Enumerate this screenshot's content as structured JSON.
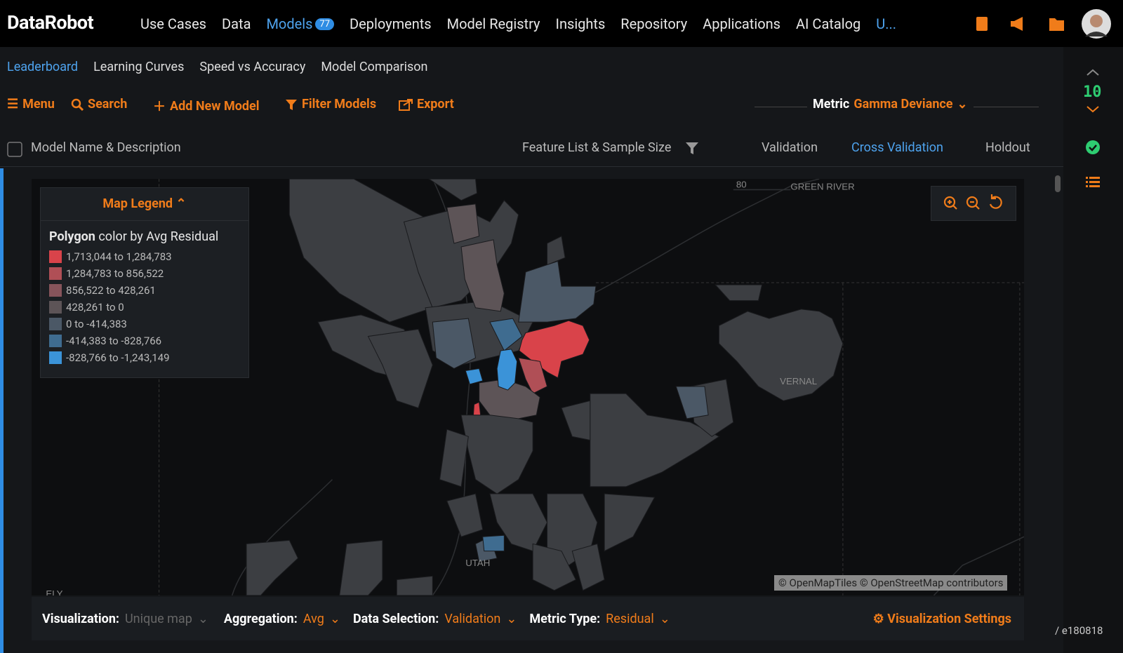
{
  "nav": {
    "logo": "DataRobot",
    "items": [
      "Use Cases",
      "Data",
      "Models",
      "Deployments",
      "Model Registry",
      "Insights",
      "Repository",
      "Applications",
      "AI Catalog",
      "U..."
    ],
    "models_badge": "77"
  },
  "tabs": [
    "Leaderboard",
    "Learning Curves",
    "Speed vs Accuracy",
    "Model Comparison"
  ],
  "toolbar": {
    "menu": "Menu",
    "search": "Search",
    "add": "Add New Model",
    "filter": "Filter Models",
    "export": "Export",
    "metric_label": "Metric",
    "metric_value": "Gamma Deviance"
  },
  "columns": [
    "Model Name & Description",
    "Feature List & Sample Size",
    "Validation",
    "Cross Validation",
    "Holdout"
  ],
  "map": {
    "legend_title": "Map Legend",
    "legend_heading_bold": "Polygon",
    "legend_heading_rest": "color by Avg Residual",
    "legend_items": [
      {
        "label": "1,713,044 to 1,284,783",
        "color": "#d9434a"
      },
      {
        "label": "1,284,783 to 856,522",
        "color": "#b04f56"
      },
      {
        "label": "856,522 to 428,261",
        "color": "#87545b"
      },
      {
        "label": "428,261 to 0",
        "color": "#5d5457"
      },
      {
        "label": "0 to -414,383",
        "color": "#4b5866"
      },
      {
        "label": "-414,383 to -828,766",
        "color": "#3f6c90"
      },
      {
        "label": "-828,766 to -1,243,149",
        "color": "#3b93d8"
      }
    ],
    "place_labels": [
      "80",
      "GREEN RIVER",
      "VERNAL",
      "UTAH",
      "ELY"
    ],
    "attribution": "© OpenMapTiles © OpenStreetMap contributors"
  },
  "footer": {
    "visualization_label": "Visualization:",
    "visualization_value": "Unique map",
    "aggregation_label": "Aggregation:",
    "aggregation_value": "Avg",
    "selection_label": "Data Selection:",
    "selection_value": "Validation",
    "metric_type_label": "Metric Type:",
    "metric_type_value": "Residual",
    "settings": "Visualization Settings"
  },
  "sidebar": {
    "count": "10"
  },
  "version": "/ e180818"
}
